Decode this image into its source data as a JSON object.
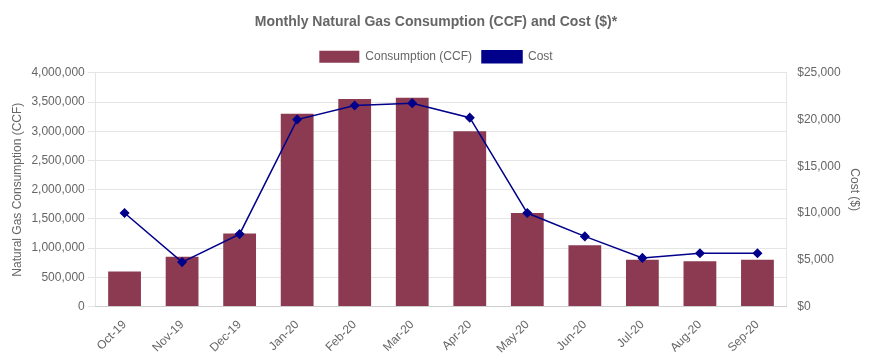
{
  "chart_data": {
    "type": "bar",
    "title": "Monthly Natural Gas Consumption (CCF) and Cost ($)*",
    "ylabel": "Natural Gas Consumption (CCF)",
    "y2label": "Cost ($)",
    "categories": [
      "Oct-19",
      "Nov-19",
      "Dec-19",
      "Jan-20",
      "Feb-20",
      "Mar-20",
      "Apr-20",
      "May-20",
      "Jun-20",
      "Jul-20",
      "Aug-20",
      "Sep-20"
    ],
    "series": [
      {
        "name": "Consumption (CCF)",
        "type": "bar",
        "color": "#8B3A52",
        "values": [
          600000,
          850000,
          1250000,
          3300000,
          3550000,
          3575000,
          3000000,
          1600000,
          1050000,
          800000,
          775000,
          800000
        ]
      },
      {
        "name": "Cost",
        "type": "line",
        "color": "#00008B",
        "marker": "diamond",
        "axis": "y2",
        "values": [
          10000,
          4750,
          7750,
          20000,
          21500,
          21750,
          20200,
          10000,
          7500,
          5200,
          5700,
          5700
        ]
      }
    ],
    "ylim": [
      0,
      4000000
    ],
    "yticks": [
      0,
      {
        "value": 500000,
        "label": "500,000"
      },
      {
        "value": 1000000,
        "label": "1,000,000"
      },
      {
        "value": 1500000,
        "label": "1,500,000"
      },
      {
        "value": 2000000,
        "label": "2,000,000"
      },
      {
        "value": 2500000,
        "label": "2,500,000"
      },
      {
        "value": 3000000,
        "label": "3,000,000"
      },
      {
        "value": 3500000,
        "label": "3,500,000"
      },
      {
        "value": 4000000,
        "label": "4,000,000"
      }
    ],
    "y2lim": [
      0,
      25000
    ],
    "y2ticks": [
      {
        "value": 0,
        "label": "$0"
      },
      {
        "value": 5000,
        "label": "$5,000"
      },
      {
        "value": 10000,
        "label": "$10,000"
      },
      {
        "value": 15000,
        "label": "$15,000"
      },
      {
        "value": 20000,
        "label": "$20,000"
      },
      {
        "value": 25000,
        "label": "$25,000"
      }
    ],
    "grid": true,
    "legend": "top"
  }
}
